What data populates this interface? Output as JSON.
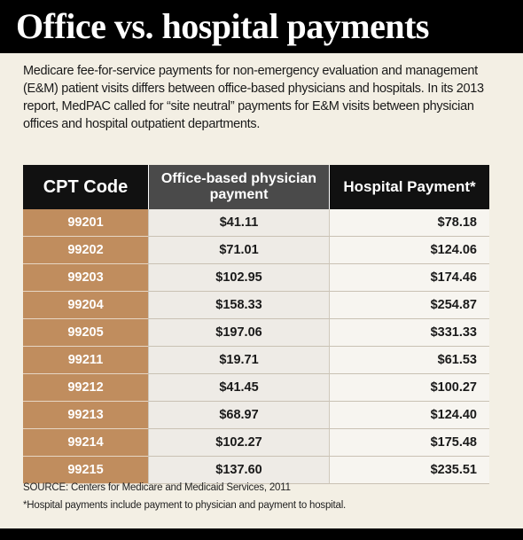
{
  "header": {
    "title": "Office vs. hospital payments"
  },
  "intro": {
    "text": "Medicare fee-for-service payments for non-emergency evaluation and management (E&M) patient visits differs between office-based physicians and hospitals. In its 2013 report, MedPAC called for “site neutral” payments for E&M visits between physician offices and hospital outpatient departments."
  },
  "chart_data": {
    "type": "table",
    "columns": [
      "CPT Code",
      "Office-based physician payment",
      "Hospital Payment*"
    ],
    "rows": [
      {
        "code": "99201",
        "office": "$41.11",
        "hospital": "$78.18"
      },
      {
        "code": "99202",
        "office": "$71.01",
        "hospital": "$124.06"
      },
      {
        "code": "99203",
        "office": "$102.95",
        "hospital": "$174.46"
      },
      {
        "code": "99204",
        "office": "$158.33",
        "hospital": "$254.87"
      },
      {
        "code": "99205",
        "office": "$197.06",
        "hospital": "$331.33"
      },
      {
        "code": "99211",
        "office": "$19.71",
        "hospital": "$61.53"
      },
      {
        "code": "99212",
        "office": "$41.45",
        "hospital": "$100.27"
      },
      {
        "code": "99213",
        "office": "$68.97",
        "hospital": "$124.40"
      },
      {
        "code": "99214",
        "office": "$102.27",
        "hospital": "$175.48"
      },
      {
        "code": "99215",
        "office": "$137.60",
        "hospital": "$235.51"
      }
    ]
  },
  "footer": {
    "source": "SOURCE: Centers for Medicare and Medicaid Services, 2011",
    "note": "*Hospital payments include payment to physician and payment to hospital."
  },
  "colors": {
    "header_dark": "#111111",
    "header_gray": "#4a4a4a",
    "code_column": "#c08d5e",
    "background": "#f3efe4"
  }
}
